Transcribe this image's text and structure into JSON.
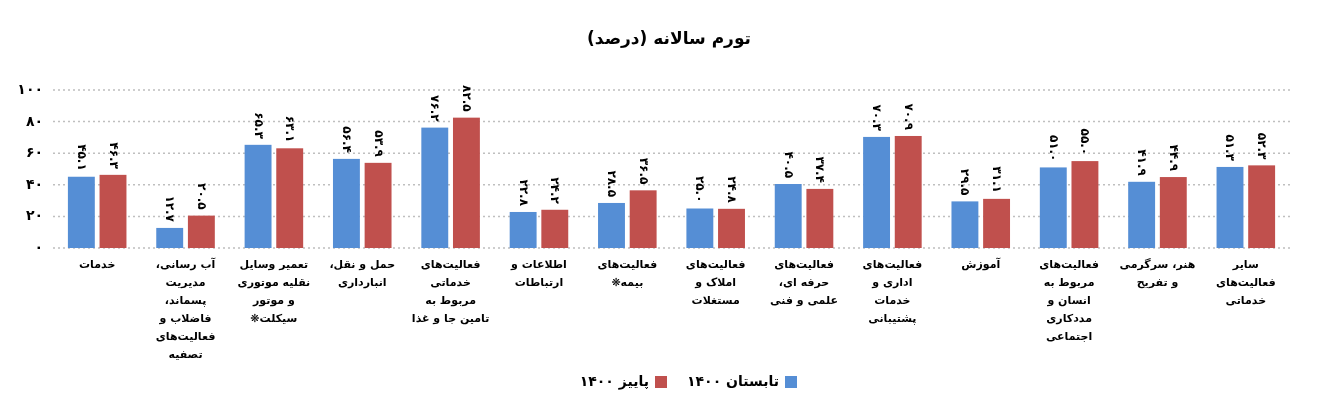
{
  "chart_data": {
    "type": "bar",
    "title": "تورم سالانه (درصد)",
    "categories": [
      "خدمات",
      "آب رسانی، مدیریت پسماند، فاضلاب و فعالیت‌های تصفیه",
      "تعمیر وسایل نقلیه موتوری و موتور سیکلت❋",
      "حمل و نقل، انبارداری",
      "فعالیت‌های خدماتی مربوط به تامین جا و غذا",
      "اطلاعات و ارتباطات",
      "فعالیت‌های بیمه❋",
      "فعالیت‌های املاک و مستغلات",
      "فعالیت‌های حرفه ای، علمی و فنی",
      "فعالیت‌های اداری و خدمات پشتیبانی",
      "آموزش",
      "فعالیت‌های مربوط به انسان و مددکاری اجتماعی",
      "هنر، سرگرمی و تفریح",
      "سایر فعالیت‌های خدماتی"
    ],
    "series": [
      {
        "name": "تابستان ۱۴۰۰",
        "color": "#558ed5",
        "values": [
          45.1,
          12.7,
          65.3,
          56.4,
          76.2,
          22.8,
          28.5,
          25.0,
          40.5,
          70.3,
          29.5,
          51.0,
          41.9,
          51.3
        ],
        "value_labels": [
          "۴۵.۱",
          "۱۲.۷",
          "۶۵.۳",
          "۵۶.۴",
          "۷۶.۲",
          "۲۲.۸",
          "۲۸.۵",
          "۲۵.۰",
          "۴۰.۵",
          "۷۰.۳",
          "۲۹.۵",
          "۵۱.۰",
          "۴۱.۹",
          "۵۱.۳"
        ]
      },
      {
        "name": "پاییز ۱۴۰۰",
        "color": "#c0504d",
        "values": [
          46.3,
          20.5,
          63.1,
          53.9,
          82.5,
          24.2,
          36.5,
          24.8,
          37.4,
          70.9,
          31.1,
          55.0,
          44.9,
          52.3
        ],
        "value_labels": [
          "۴۶.۳",
          "۲۰.۵",
          "۶۳.۱",
          "۵۳.۹",
          "۸۲.۵",
          "۲۴.۲",
          "۳۶.۵",
          "۲۴.۸",
          "۳۷.۴",
          "۷۰.۹",
          "۳۱.۱",
          "۵۵.۰",
          "۴۴.۹",
          "۵۲.۳"
        ]
      }
    ],
    "ylim": [
      0,
      100
    ],
    "yticks": [
      {
        "value": 0,
        "label": "۰"
      },
      {
        "value": 20,
        "label": "۲۰"
      },
      {
        "value": 40,
        "label": "۴۰"
      },
      {
        "value": 60,
        "label": "۶۰"
      },
      {
        "value": 80,
        "label": "۸۰"
      },
      {
        "value": 100,
        "label": "۱۰۰"
      }
    ],
    "grid": "y",
    "legend": "bottom"
  }
}
